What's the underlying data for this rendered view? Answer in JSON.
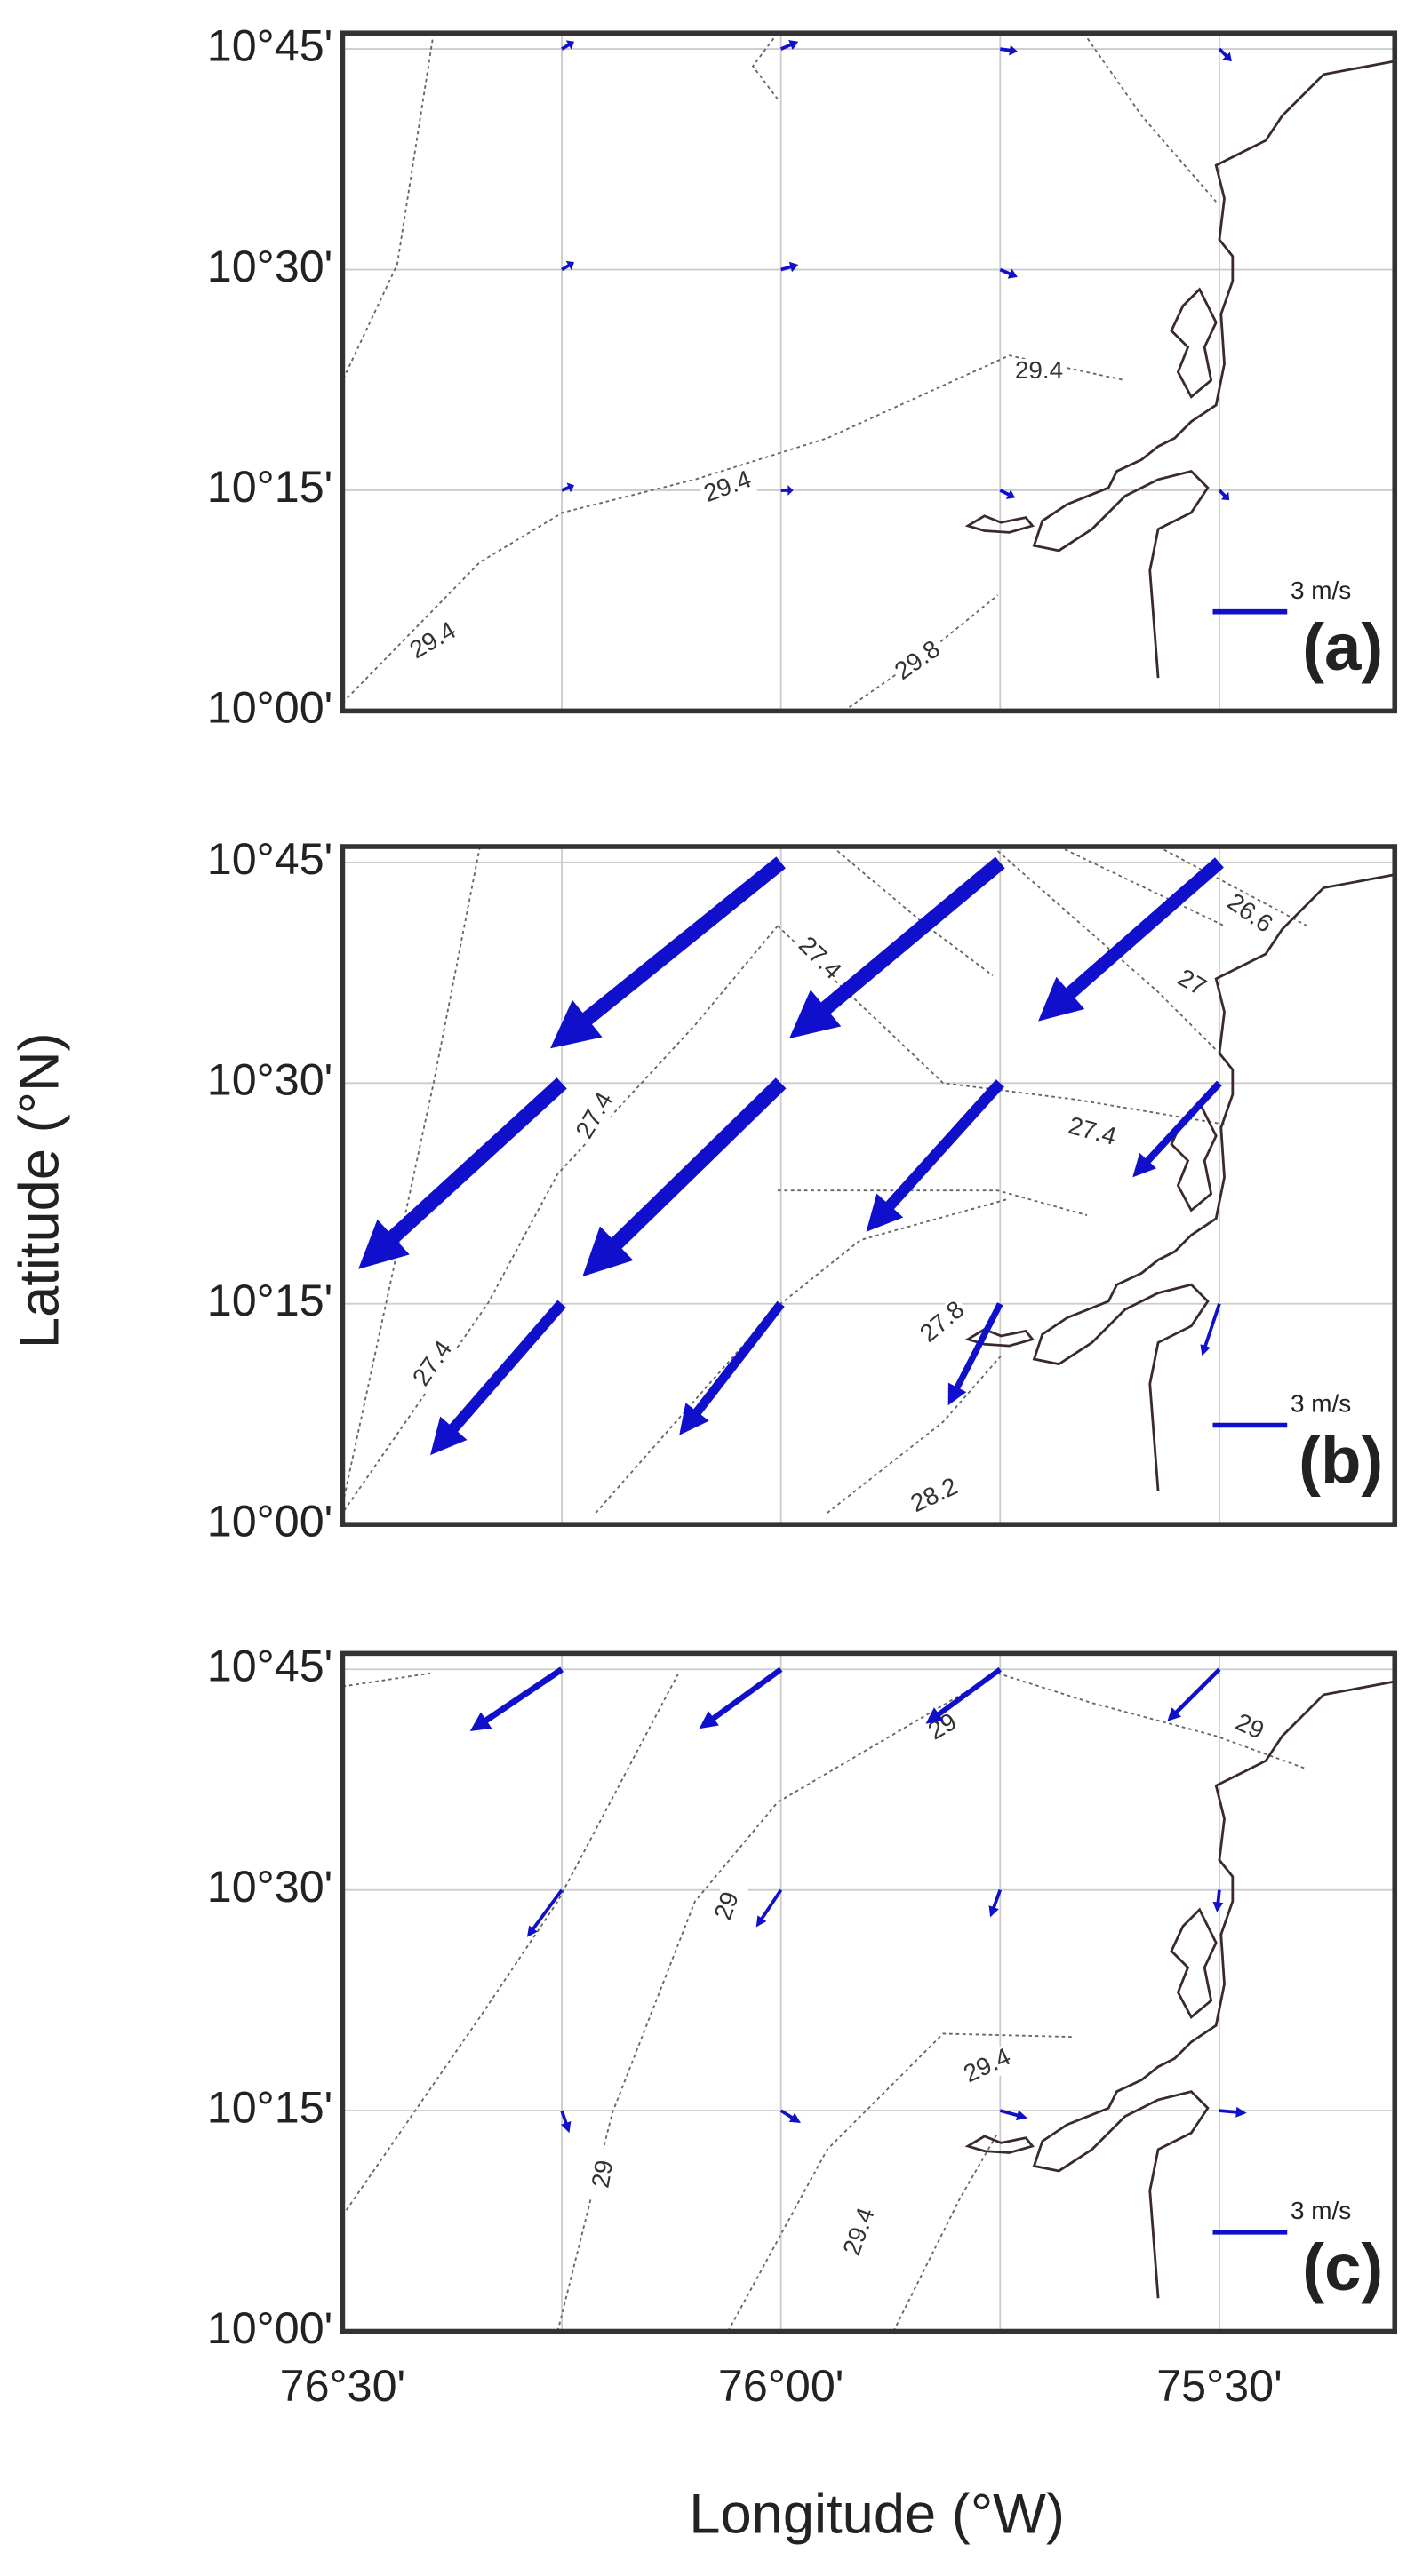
{
  "chart_data": {
    "type": "quiver",
    "x_axis_label": "Longitude (°W)",
    "y_axis_label": "Latitude (°N)",
    "xlim": [
      -76.5,
      -75.3
    ],
    "ylim": [
      10,
      10.768
    ],
    "xticks": [
      {
        "value": -76.5,
        "label": "76°30'"
      },
      {
        "value": -76.25,
        "label": null
      },
      {
        "value": -76,
        "label": "76°00'"
      },
      {
        "value": -75.75,
        "label": null
      },
      {
        "value": -75.5,
        "label": "75°30'"
      }
    ],
    "yticks": [
      {
        "value": 10,
        "label": "10°00'"
      },
      {
        "value": 10.25,
        "label": "10°15'"
      },
      {
        "value": 10.5,
        "label": "10°30'"
      },
      {
        "value": 10.75,
        "label": "10°45'"
      }
    ],
    "scale": {
      "value": 3,
      "label": "3 m/s"
    },
    "color": "#1010cc",
    "panels": [
      {
        "label": "(a)",
        "lon": [
          -76.25,
          -76,
          -75.75,
          -75.5,
          -76.25,
          -76,
          -75.75,
          -76.25,
          -76,
          -75.75,
          -75.5
        ],
        "lat": [
          10.75,
          10.75,
          10.75,
          10.75,
          10.5,
          10.5,
          10.5,
          10.25,
          10.25,
          10.25,
          10.25
        ],
        "u": [
          0.5,
          0.7,
          0.7,
          0.5,
          0.5,
          0.7,
          0.7,
          0.5,
          0.5,
          0.6,
          0.4
        ],
        "v": [
          0.3,
          0.3,
          -0.1,
          -0.5,
          0.3,
          0.2,
          -0.3,
          0.2,
          0,
          -0.3,
          -0.4
        ],
        "contour_labels": [
          "29.4",
          "29.4",
          "29.4",
          "29.8"
        ]
      },
      {
        "label": "(b)",
        "lon": [
          -76,
          -75.75,
          -75.5,
          -76.25,
          -76,
          -75.75,
          -75.5,
          -76.25,
          -76,
          -75.75,
          -75.5
        ],
        "lat": [
          10.75,
          10.75,
          10.75,
          10.5,
          10.5,
          10.5,
          10.5,
          10.25,
          10.25,
          10.25,
          10.25
        ],
        "u": [
          -9.3,
          -8.5,
          -7.3,
          -8.2,
          -8,
          -5.4,
          -3.5,
          -5.3,
          -4.1,
          -2.1,
          -0.7
        ],
        "v": [
          -7.5,
          -7.1,
          -6.4,
          -7.5,
          -7.8,
          -6,
          -3.8,
          -6.1,
          -5.3,
          -4.1,
          -2.1
        ],
        "contour_labels": [
          "26.6",
          "27.4",
          "27",
          "27.4",
          "27.4",
          "27.8",
          "27.4",
          "28.2"
        ]
      },
      {
        "label": "(c)",
        "lon": [
          -76.25,
          -76,
          -75.75,
          -75.5,
          -76.25,
          -76,
          -75.75,
          -75.5,
          -76.25,
          -76,
          -75.75,
          -75.5
        ],
        "lat": [
          10.75,
          10.75,
          10.75,
          10.75,
          10.5,
          10.5,
          10.5,
          10.5,
          10.25,
          10.25,
          10.25,
          10.25
        ],
        "u": [
          -3.7,
          -3.3,
          -3,
          -2.1,
          -1.4,
          -1,
          -0.4,
          -0.1,
          0.3,
          0.8,
          1.1,
          1.1
        ],
        "v": [
          -2.5,
          -2.4,
          -2.2,
          -2.1,
          -1.9,
          -1.5,
          -1.1,
          -0.9,
          -0.9,
          -0.5,
          -0.3,
          -0.1
        ],
        "contour_labels": [
          "29",
          "29",
          "29",
          "29.4",
          "29",
          "29.4"
        ]
      }
    ]
  }
}
